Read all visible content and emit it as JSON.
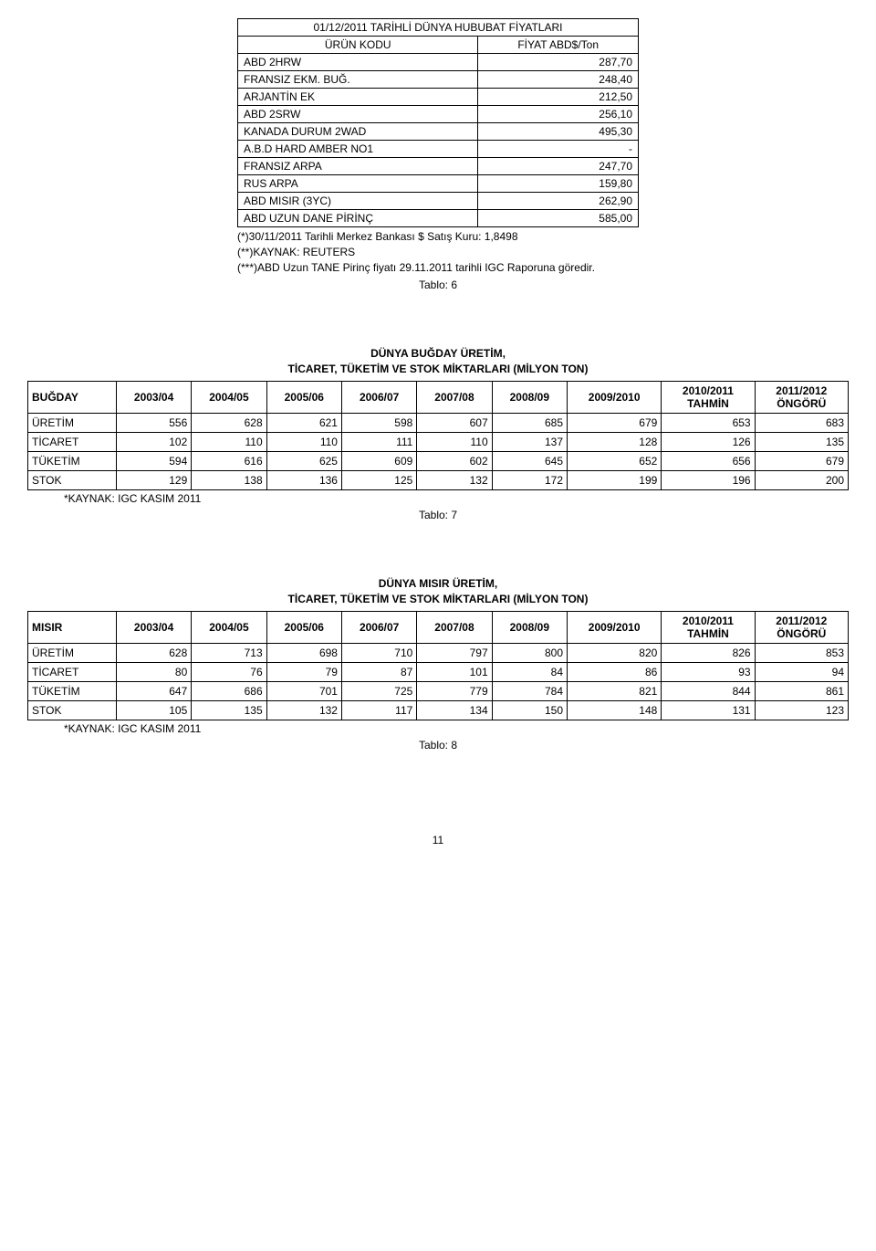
{
  "priceTable": {
    "title": "01/12/2011 TARİHLİ DÜNYA HUBUBAT FİYATLARI",
    "headers": [
      "ÜRÜN KODU",
      "FİYAT ABD$/Ton"
    ],
    "rows": [
      {
        "label": "ABD 2HRW",
        "value": "287,70"
      },
      {
        "label": "FRANSIZ EKM. BUĞ.",
        "value": "248,40"
      },
      {
        "label": "ARJANTİN EK",
        "value": "212,50"
      },
      {
        "label": "ABD 2SRW",
        "value": "256,10"
      },
      {
        "label": "KANADA DURUM 2WAD",
        "value": "495,30"
      },
      {
        "label": "A.B.D HARD AMBER NO1",
        "value": "-"
      },
      {
        "label": "FRANSIZ ARPA",
        "value": "247,70"
      },
      {
        "label": "RUS ARPA",
        "value": "159,80"
      },
      {
        "label": "ABD MISIR (3YC)",
        "value": "262,90"
      },
      {
        "label": "ABD UZUN DANE PİRİNÇ",
        "value": "585,00"
      }
    ],
    "footnotes": [
      "(*)30/11/2011 Tarihli Merkez Bankası $ Satış Kuru: 1,8498",
      "(**)KAYNAK: REUTERS",
      "(***)ABD Uzun TANE Pirinç fiyatı 29.11.2011 tarihli IGC Raporuna göredir."
    ],
    "tabloLabel": "Tablo: 6"
  },
  "wheat": {
    "title1": "DÜNYA BUĞDAY ÜRETİM,",
    "title2": "TİCARET, TÜKETİM VE STOK MİKTARLARI (MİLYON TON)",
    "rowHeaderLabel": "BUĞDAY",
    "colHeaders": [
      "2003/04",
      "2004/05",
      "2005/06",
      "2006/07",
      "2007/08",
      "2008/09",
      "2009/2010",
      "2010/2011 TAHMİN",
      "2011/2012 ÖNGÖRÜ"
    ],
    "rows": [
      {
        "label": "ÜRETİM",
        "vals": [
          "556",
          "628",
          "621",
          "598",
          "607",
          "685",
          "679",
          "653",
          "683"
        ]
      },
      {
        "label": "TİCARET",
        "vals": [
          "102",
          "110",
          "110",
          "111",
          "110",
          "137",
          "128",
          "126",
          "135"
        ]
      },
      {
        "label": "TÜKETİM",
        "vals": [
          "594",
          "616",
          "625",
          "609",
          "602",
          "645",
          "652",
          "656",
          "679"
        ]
      },
      {
        "label": "STOK",
        "vals": [
          "129",
          "138",
          "136",
          "125",
          "132",
          "172",
          "199",
          "196",
          "200"
        ]
      }
    ],
    "source": "*KAYNAK: IGC KASIM 2011",
    "tabloLabel": "Tablo: 7"
  },
  "corn": {
    "title1": "DÜNYA MISIR ÜRETİM,",
    "title2": "TİCARET, TÜKETİM VE STOK MİKTARLARI (MİLYON TON)",
    "rowHeaderLabel": "MISIR",
    "colHeaders": [
      "2003/04",
      "2004/05",
      "2005/06",
      "2006/07",
      "2007/08",
      "2008/09",
      "2009/2010",
      "2010/2011 TAHMİN",
      "2011/2012 ÖNGÖRÜ"
    ],
    "rows": [
      {
        "label": "ÜRETİM",
        "vals": [
          "628",
          "713",
          "698",
          "710",
          "797",
          "800",
          "820",
          "826",
          "853"
        ]
      },
      {
        "label": "TİCARET",
        "vals": [
          "80",
          "76",
          "79",
          "87",
          "101",
          "84",
          "86",
          "93",
          "94"
        ]
      },
      {
        "label": "TÜKETİM",
        "vals": [
          "647",
          "686",
          "701",
          "725",
          "779",
          "784",
          "821",
          "844",
          "861"
        ]
      },
      {
        "label": "STOK",
        "vals": [
          "105",
          "135",
          "132",
          "117",
          "134",
          "150",
          "148",
          "131",
          "123"
        ]
      }
    ],
    "source": "*KAYNAK: IGC KASIM 2011",
    "tabloLabel": "Tablo: 8"
  },
  "pageNumber": "11"
}
